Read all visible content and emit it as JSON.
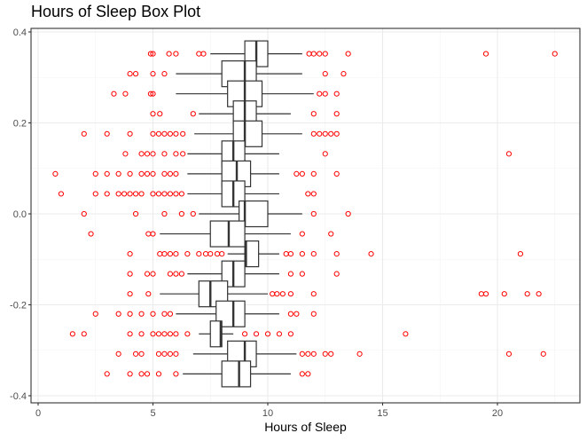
{
  "chart_data": {
    "type": "boxplot",
    "title": "Hours of Sleep Box Plot",
    "xlabel": "Hours of Sleep",
    "ylabel": "",
    "xlim": [
      -0.1,
      23.5
    ],
    "ylim": [
      -0.41,
      0.41
    ],
    "x_ticks": [
      0,
      5,
      10,
      15,
      20
    ],
    "x_tick_labels": [
      "0",
      "5",
      "10",
      "15",
      "20"
    ],
    "y_ticks": [
      0.4,
      0.2,
      0.0,
      -0.2,
      -0.4
    ],
    "y_tick_labels": [
      "0.4",
      "0.2",
      "0.0",
      "-0.2",
      "-0.4"
    ],
    "grid": true,
    "colors": {
      "box": "#333333",
      "outlier": "#ff0000",
      "grid": "#ebebeb",
      "panel_border": "#333333"
    },
    "boxes": [
      {
        "y": 0.352,
        "whisker_low": 7.5,
        "q1": 9.0,
        "median": 9.5,
        "q3": 10.0,
        "whisker_high": 11.5,
        "outliers": [
          4.9,
          5.0,
          5.7,
          6.0,
          7.0,
          7.2,
          11.8,
          12.0,
          12.25,
          12.5,
          13.5,
          19.5,
          22.5
        ]
      },
      {
        "y": 0.308,
        "whisker_low": 6.0,
        "q1": 8.0,
        "median": 9.0,
        "q3": 9.5,
        "whisker_high": 11.5,
        "outliers": [
          4.0,
          4.25,
          5.0,
          5.5,
          12.5,
          13.3
        ]
      },
      {
        "y": 0.264,
        "whisker_low": 6.0,
        "q1": 8.25,
        "median": 9.0,
        "q3": 9.75,
        "whisker_high": 12.0,
        "outliers": [
          3.3,
          3.8,
          4.9,
          5.0,
          12.25,
          12.5,
          13.0
        ]
      },
      {
        "y": 0.22,
        "whisker_low": 7.0,
        "q1": 8.5,
        "median": 9.0,
        "q3": 9.5,
        "whisker_high": 11.0,
        "outliers": [
          5.0,
          5.3,
          6.75,
          12.0,
          13.0
        ]
      },
      {
        "y": 0.176,
        "whisker_low": 6.8,
        "q1": 8.5,
        "median": 9.0,
        "q3": 9.75,
        "whisker_high": 11.5,
        "outliers": [
          2.0,
          3.0,
          4.0,
          5.0,
          5.25,
          5.5,
          5.75,
          6.0,
          6.3,
          12.0,
          12.25,
          12.5,
          12.75,
          13.0
        ]
      },
      {
        "y": 0.132,
        "whisker_low": 6.5,
        "q1": 8.0,
        "median": 8.5,
        "q3": 9.0,
        "whisker_high": 10.5,
        "outliers": [
          3.8,
          4.5,
          4.75,
          5.0,
          5.5,
          6.0,
          6.3,
          12.5,
          20.5
        ]
      },
      {
        "y": 0.088,
        "whisker_low": 6.5,
        "q1": 8.0,
        "median": 8.65,
        "q3": 9.25,
        "whisker_high": 10.5,
        "outliers": [
          0.75,
          2.5,
          3.0,
          3.5,
          4.0,
          4.5,
          4.75,
          5.0,
          5.5,
          5.75,
          6.0,
          11.25,
          11.5,
          12.0,
          13.0
        ]
      },
      {
        "y": 0.044,
        "whisker_low": 6.5,
        "q1": 8.0,
        "median": 8.5,
        "q3": 9.0,
        "whisker_high": 10.5,
        "outliers": [
          1.0,
          2.5,
          3.0,
          3.5,
          3.75,
          4.0,
          4.25,
          4.5,
          5.0,
          5.25,
          5.5,
          5.75,
          6.0,
          6.25,
          11.75,
          12.0
        ]
      },
      {
        "y": 0.0,
        "whisker_low": 7.0,
        "q1": 8.75,
        "median": 9.0,
        "q3": 10.0,
        "whisker_high": 11.5,
        "outliers": [
          2.0,
          4.25,
          5.5,
          6.25,
          6.75,
          12.0,
          13.5
        ]
      },
      {
        "y": -0.044,
        "whisker_low": 5.3,
        "q1": 7.5,
        "median": 8.3,
        "q3": 9.0,
        "whisker_high": 11.0,
        "outliers": [
          2.3,
          4.8,
          5.0,
          11.5,
          12.75
        ]
      },
      {
        "y": -0.088,
        "whisker_low": 8.25,
        "q1": 9.0,
        "median": 9.05,
        "q3": 9.6,
        "whisker_high": 10.5,
        "outliers": [
          4.0,
          5.3,
          5.5,
          5.75,
          6.0,
          6.5,
          7.0,
          7.3,
          7.5,
          7.8,
          8.0,
          10.8,
          11.0,
          11.5,
          12.0,
          13.0,
          14.5,
          21.0
        ]
      },
      {
        "y": -0.132,
        "whisker_low": 6.5,
        "q1": 8.0,
        "median": 8.5,
        "q3": 9.0,
        "whisker_high": 10.5,
        "outliers": [
          4.0,
          4.75,
          5.0,
          5.75,
          6.0,
          6.25,
          11.0,
          11.5,
          13.0
        ]
      },
      {
        "y": -0.176,
        "whisker_low": 5.3,
        "q1": 7.0,
        "median": 7.5,
        "q3": 8.25,
        "whisker_high": 10.0,
        "outliers": [
          4.0,
          4.8,
          10.2,
          10.4,
          10.65,
          11.0,
          12.0,
          19.3,
          19.5,
          20.3,
          21.3,
          21.8
        ]
      },
      {
        "y": -0.22,
        "whisker_low": 6.0,
        "q1": 7.75,
        "median": 8.5,
        "q3": 9.0,
        "whisker_high": 10.5,
        "outliers": [
          2.5,
          3.5,
          4.0,
          4.5,
          5.0,
          5.5,
          5.75,
          11.0,
          11.25,
          12.0
        ]
      },
      {
        "y": -0.264,
        "whisker_low": 7.0,
        "q1": 7.5,
        "median": 7.95,
        "q3": 8.0,
        "whisker_high": 8.5,
        "outliers": [
          1.5,
          2.0,
          4.0,
          4.5,
          5.0,
          5.25,
          5.5,
          5.75,
          6.0,
          6.5,
          9.0,
          9.5,
          10.0,
          10.5,
          11.0,
          16.0
        ]
      },
      {
        "y": -0.308,
        "whisker_low": 6.75,
        "q1": 8.25,
        "median": 9.0,
        "q3": 9.5,
        "whisker_high": 11.25,
        "outliers": [
          3.5,
          4.25,
          4.5,
          5.25,
          5.5,
          5.75,
          6.0,
          11.5,
          11.75,
          12.0,
          12.5,
          12.75,
          14.0,
          20.5,
          22.0
        ]
      },
      {
        "y": -0.352,
        "whisker_low": 6.3,
        "q1": 8.0,
        "median": 8.75,
        "q3": 9.25,
        "whisker_high": 11.0,
        "outliers": [
          3.0,
          4.0,
          4.5,
          4.75,
          5.25,
          6.0,
          11.5,
          11.75
        ]
      }
    ]
  }
}
